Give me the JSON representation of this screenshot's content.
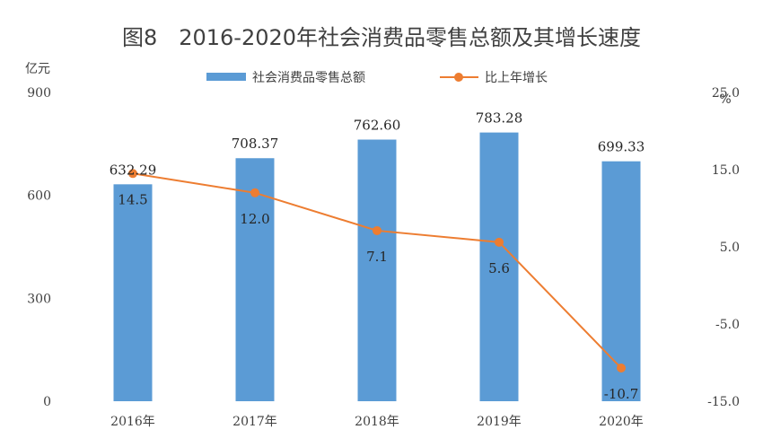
{
  "chart_data": {
    "type": "bar",
    "title": "图8　2016-2020年社会消费品零售总额及其增长速度",
    "categories": [
      "2016年",
      "2017年",
      "2018年",
      "2019年",
      "2020年"
    ],
    "series": [
      {
        "name": "社会消费品零售总额",
        "type": "bar",
        "axis": "left",
        "values": [
          632.29,
          708.37,
          762.6,
          783.28,
          699.33
        ],
        "labels": [
          "632.29",
          "708.37",
          "762.60",
          "783.28",
          "699.33"
        ]
      },
      {
        "name": "比上年增长",
        "type": "line",
        "axis": "right",
        "values": [
          14.5,
          12.0,
          7.1,
          5.6,
          -10.7
        ],
        "labels": [
          "14.5",
          "12.0",
          "7.1",
          "5.6",
          "-10.7"
        ]
      }
    ],
    "y_left": {
      "unit": "亿元",
      "ylim": [
        0,
        900
      ],
      "ticks": [
        "0",
        "300",
        "600",
        "900"
      ]
    },
    "y_right": {
      "unit": "%",
      "ylim": [
        -15,
        25
      ],
      "ticks": [
        "-15.0",
        "-5.0",
        "5.0",
        "15.0",
        "25.0"
      ]
    },
    "grid": false,
    "legend_position": "top-center",
    "colors": {
      "bar": "#5B9BD5",
      "line": "#ED7D31"
    }
  }
}
